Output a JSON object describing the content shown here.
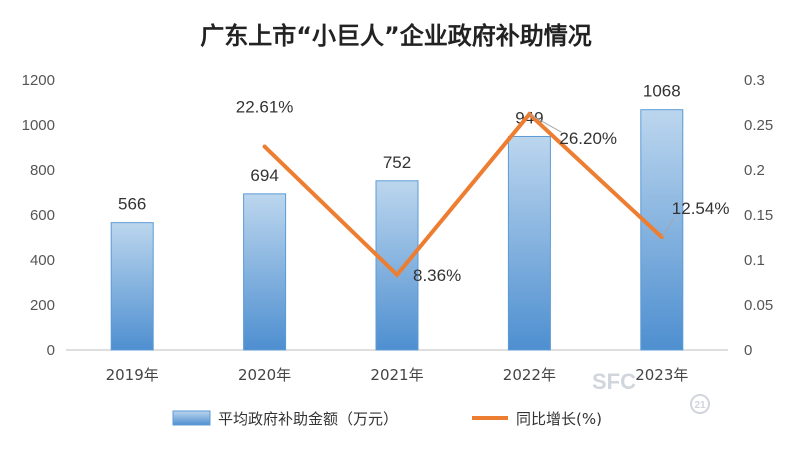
{
  "chart_data": {
    "type": "bar",
    "title": "广东上市“小巨人”企业政府补助情况",
    "categories": [
      "2019年",
      "2020年",
      "2021年",
      "2022年",
      "2023年"
    ],
    "series": [
      {
        "name": "平均政府补助金额（万元）",
        "type": "bar",
        "axis": "left",
        "values": [
          566,
          694,
          752,
          949,
          1068
        ],
        "labels": [
          "566",
          "694",
          "752",
          "949",
          "1068"
        ]
      },
      {
        "name": "同比增长(%)",
        "type": "line",
        "axis": "right",
        "values": [
          null,
          0.2261,
          0.0836,
          0.262,
          0.1254
        ],
        "labels": [
          "",
          "22.61%",
          "8.36%",
          "26.20%",
          "12.54%"
        ]
      }
    ],
    "y_left": {
      "min": 0,
      "max": 1200,
      "ticks": [
        "0",
        "200",
        "400",
        "600",
        "800",
        "1000",
        "1200"
      ]
    },
    "y_right": {
      "min": 0,
      "max": 0.3,
      "ticks": [
        "0",
        "0.05",
        "0.1",
        "0.15",
        "0.2",
        "0.25",
        "0.3"
      ]
    },
    "grid": false,
    "legend_position": "bottom",
    "colors": {
      "bar_top": "#bcd6ee",
      "bar_bottom": "#4e8fd0",
      "bar_stroke": "#5b9bd5",
      "line": "#ed7d31"
    }
  },
  "watermark": {
    "text": "SFC",
    "subtext": "21"
  }
}
